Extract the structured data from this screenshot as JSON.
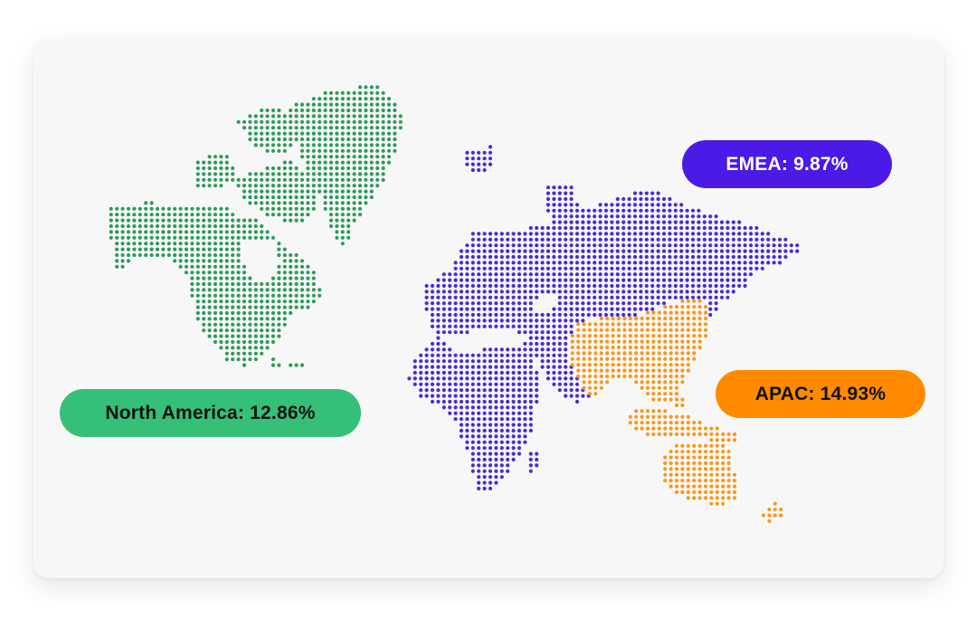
{
  "regions": [
    {
      "id": "north-america",
      "label": "North America: 12.86%",
      "value": 12.86,
      "color": "#35bf78",
      "text_color": "#111111"
    },
    {
      "id": "emea",
      "label": "EMEA: 9.87%",
      "value": 9.87,
      "color": "#4b1ae6",
      "text_color": "#ffffff"
    },
    {
      "id": "apac",
      "label": "APAC: 14.93%",
      "value": 14.93,
      "color": "#ff8a00",
      "text_color": "#111111"
    }
  ],
  "dot_colors": {
    "north_america": "#2f9a5b",
    "emea": "#4b2bd0",
    "apac": "#f59a1c"
  }
}
